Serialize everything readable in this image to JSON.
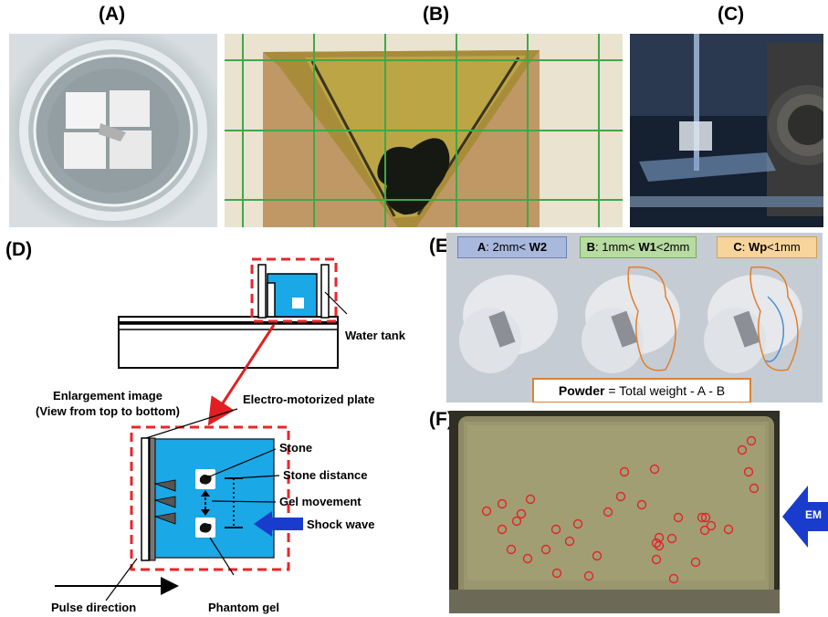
{
  "panels": {
    "a": {
      "label": "(A)"
    },
    "b": {
      "label": "(B)"
    },
    "c": {
      "label": "(C)"
    },
    "d": {
      "label": "(D)",
      "water_tank": "Water tank",
      "enlargement_line1": "Enlargement image",
      "enlargement_line2": "(View from top to bottom)",
      "electro_plate": "Electro-motorized plate",
      "stone": "Stone",
      "stone_distance": "Stone distance",
      "gel_movement": "Gel movement",
      "shock_wave": "Shock wave",
      "pulse_direction": "Pulse direction",
      "phantom_gel": "Phantom gel"
    },
    "e": {
      "label": "(E)",
      "box_a_prefix": "A",
      "box_a_mid": ": 2mm< ",
      "box_a_var": "W2",
      "box_b_prefix": "B",
      "box_b_mid": ": 1mm< ",
      "box_b_var": "W1",
      "box_b_suffix": "<2mm",
      "box_c_prefix": "C",
      "box_c_sep": ": ",
      "box_c_var": "Wp",
      "box_c_suffix": "<1mm",
      "formula_bold": "Powder",
      "formula_rest": " = Total weight - A - B"
    },
    "f": {
      "label": "(F)",
      "em_label": "EM"
    }
  },
  "colors": {
    "water_blue": "#1aa8e6",
    "dashed_red": "#e8262a",
    "arrow_red": "#e02020",
    "shock_blue": "#1a3ccc",
    "box_a_bg": "#a9b8dd",
    "box_b_bg": "#b7dba0",
    "box_c_bg": "#f6d49a",
    "formula_border": "#e0802c",
    "circle_red": "#e0262a"
  }
}
